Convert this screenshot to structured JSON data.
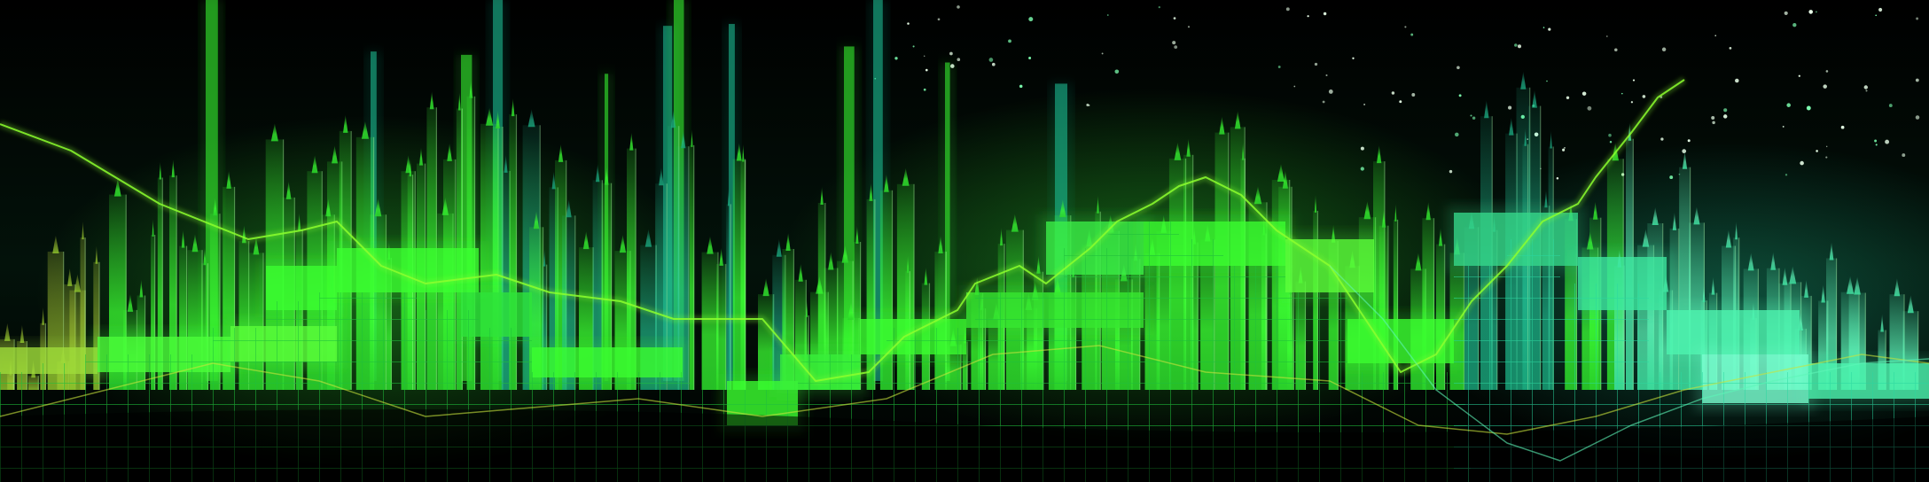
{
  "image": {
    "kind": "abstract-financial-skyline",
    "text": [],
    "colors": {
      "background": "#000000",
      "bright_green": "#3bff32",
      "lime": "#8cff2c",
      "teal": "#23c79a",
      "mint": "#5df5b8",
      "yellow_green": "#c8e23c",
      "grid_line": "#1fbf3a",
      "star": "#e8ffe8"
    }
  }
}
